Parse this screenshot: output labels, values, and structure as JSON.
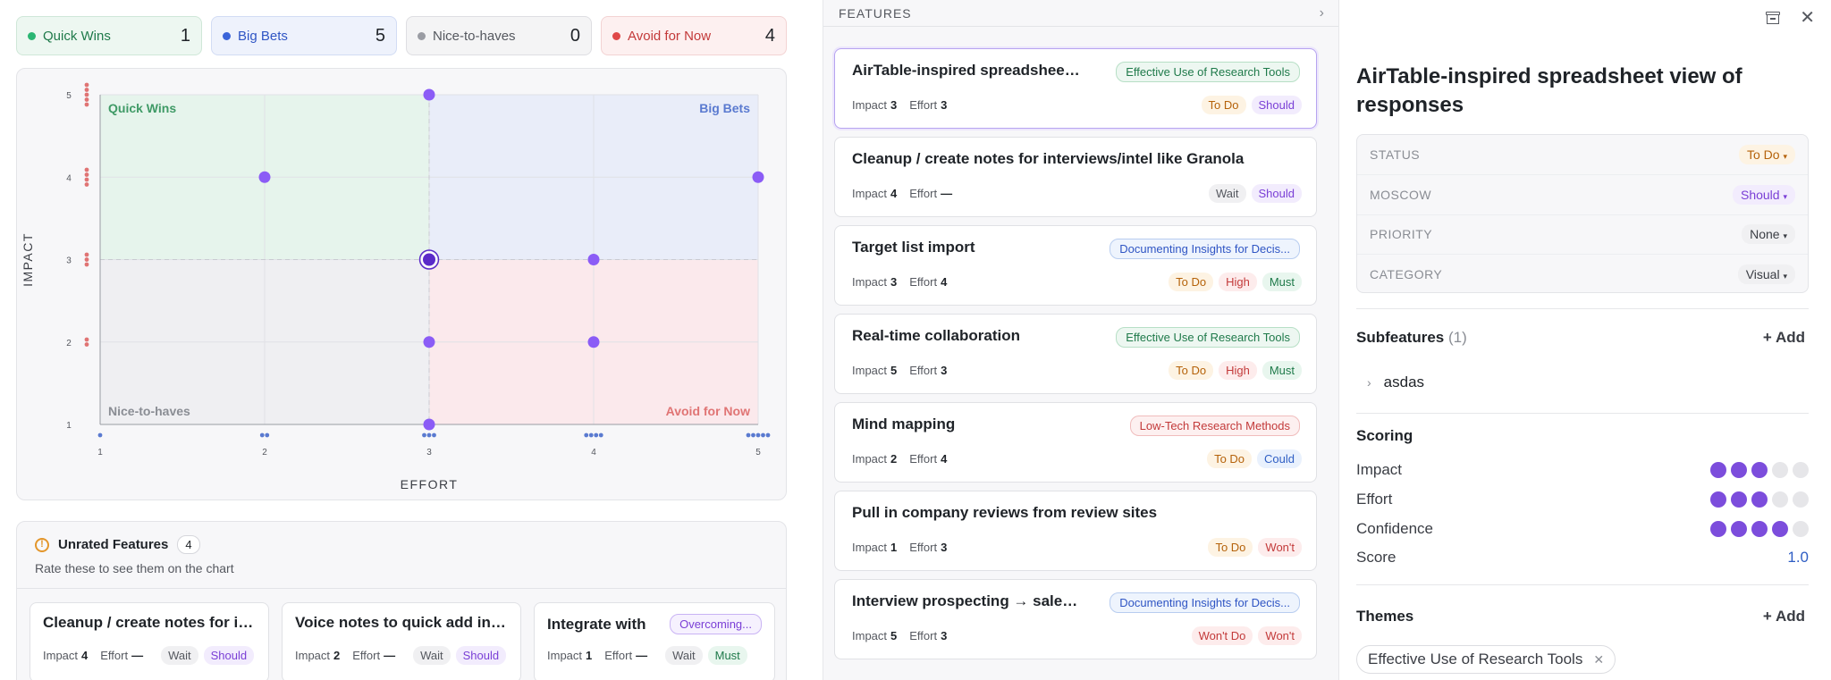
{
  "quadrant_summary": [
    {
      "name": "Quick Wins",
      "count": "1",
      "color": "#2bb673"
    },
    {
      "name": "Big Bets",
      "count": "5",
      "color": "#3b64d9"
    },
    {
      "name": "Nice-to-haves",
      "count": "0",
      "color": "#9a9ca3"
    },
    {
      "name": "Avoid for Now",
      "count": "4",
      "color": "#e04848"
    }
  ],
  "chart_data": {
    "type": "scatter",
    "xlabel": "EFFORT",
    "ylabel": "IMPACT",
    "xlim": [
      1,
      5
    ],
    "ylim": [
      1,
      5
    ],
    "x_ticks": [
      "1",
      "2",
      "3",
      "4",
      "5"
    ],
    "y_ticks": [
      "1",
      "2",
      "3",
      "4",
      "5"
    ],
    "quadrant_labels": {
      "top_left": "Quick Wins",
      "top_right": "Big Bets",
      "bottom_left": "Nice-to-haves",
      "bottom_right": "Avoid for Now"
    },
    "points": [
      {
        "x": 3,
        "y": 5
      },
      {
        "x": 2,
        "y": 4
      },
      {
        "x": 5,
        "y": 4
      },
      {
        "x": 3,
        "y": 3,
        "selected": true
      },
      {
        "x": 4,
        "y": 3
      },
      {
        "x": 3,
        "y": 2
      },
      {
        "x": 4,
        "y": 2
      },
      {
        "x": 3,
        "y": 1
      }
    ],
    "x_marginal_counts": [
      1,
      2,
      3,
      4,
      5
    ],
    "y_marginal_counts": [
      0,
      2,
      3,
      4,
      5
    ],
    "point_color": "#8b5cf6",
    "selected_color": "#5b2bc9"
  },
  "unrated": {
    "title": "Unrated Features",
    "count": "4",
    "subtitle": "Rate these to see them on the chart",
    "impact_label": "Impact",
    "effort_label": "Effort",
    "cards": [
      {
        "title": "Cleanup / create notes for interviews/intel like Granola",
        "impact": "4",
        "effort": "—",
        "status": "Wait",
        "moscow": "Should"
      },
      {
        "title": "Voice notes to quick add interview insights",
        "impact": "2",
        "effort": "—",
        "status": "Wait",
        "moscow": "Should"
      },
      {
        "title": "Integrate with",
        "theme": "Overcoming...",
        "impact": "1",
        "effort": "—",
        "status": "Wait",
        "moscow": "Must"
      }
    ]
  },
  "features": {
    "header": "FEATURES",
    "impact_label": "Impact",
    "effort_label": "Effort",
    "items": [
      {
        "title": "AirTable-inspired spreadsheet view of responses",
        "theme": "Effective Use of Research Tools",
        "theme_style": "green",
        "impact": "3",
        "effort": "3",
        "tags": [
          {
            "text": "To Do",
            "style": "todo"
          },
          {
            "text": "Should",
            "style": "should"
          }
        ]
      },
      {
        "title": "Cleanup / create notes for interviews/intel like Granola",
        "theme": "",
        "theme_style": "",
        "impact": "4",
        "effort": "—",
        "tags": [
          {
            "text": "Wait",
            "style": "wait"
          },
          {
            "text": "Should",
            "style": "should"
          }
        ]
      },
      {
        "title": "Target list import",
        "theme": "Documenting Insights for Decis...",
        "theme_style": "blue",
        "impact": "3",
        "effort": "4",
        "tags": [
          {
            "text": "To Do",
            "style": "todo"
          },
          {
            "text": "High",
            "style": "high"
          },
          {
            "text": "Must",
            "style": "must"
          }
        ]
      },
      {
        "title": "Real-time collaboration",
        "theme": "Effective Use of Research Tools",
        "theme_style": "green",
        "impact": "5",
        "effort": "3",
        "tags": [
          {
            "text": "To Do",
            "style": "todo"
          },
          {
            "text": "High",
            "style": "high"
          },
          {
            "text": "Must",
            "style": "must"
          }
        ]
      },
      {
        "title": "Mind mapping",
        "theme": "Low-Tech Research Methods",
        "theme_style": "red",
        "impact": "2",
        "effort": "4",
        "tags": [
          {
            "text": "To Do",
            "style": "todo"
          },
          {
            "text": "Could",
            "style": "could"
          }
        ]
      },
      {
        "title": "Pull in company reviews from review sites",
        "theme": "",
        "theme_style": "",
        "impact": "1",
        "effort": "3",
        "tags": [
          {
            "text": "To Do",
            "style": "todo"
          },
          {
            "text": "Won't",
            "style": "wont"
          }
        ]
      },
      {
        "title": "Interview prospecting → sales pipeline",
        "theme": "Documenting Insights for Decis...",
        "theme_style": "blue",
        "impact": "5",
        "effort": "3",
        "tags": [
          {
            "text": "Won't Do",
            "style": "wontdo"
          },
          {
            "text": "Won't",
            "style": "wont"
          }
        ]
      }
    ]
  },
  "detail": {
    "title": "AirTable-inspired spreadsheet view of responses",
    "properties": [
      {
        "label": "STATUS",
        "value": "To Do",
        "style": "todo"
      },
      {
        "label": "MOSCOW",
        "value": "Should",
        "style": "should"
      },
      {
        "label": "PRIORITY",
        "value": "None",
        "style": "plain"
      },
      {
        "label": "CATEGORY",
        "value": "Visual",
        "style": "plain"
      }
    ],
    "subfeatures_title": "Subfeatures",
    "subfeatures_count": "(1)",
    "add_label": "+ Add",
    "subfeatures": [
      "asdas"
    ],
    "scoring_title": "Scoring",
    "scores": [
      {
        "label": "Impact",
        "value": 3,
        "max": 5
      },
      {
        "label": "Effort",
        "value": 3,
        "max": 5
      },
      {
        "label": "Confidence",
        "value": 4,
        "max": 5
      }
    ],
    "score_label": "Score",
    "score_value": "1.0",
    "themes_title": "Themes",
    "themes": [
      "Effective Use of Research Tools"
    ]
  }
}
